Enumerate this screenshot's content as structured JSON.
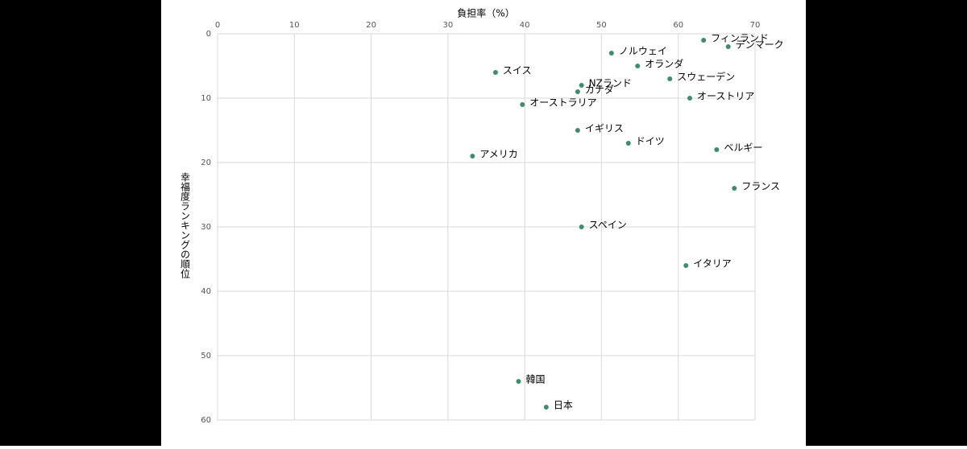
{
  "chart_data": {
    "type": "scatter",
    "x_label": "負担率（%）",
    "y_label": "幸福度ランキングの順位",
    "labels": [
      "フィンランド",
      "デンマーク",
      "ノルウェイ",
      "オランダ",
      "スイス",
      "スウェーデン",
      "NZランド",
      "カナダ",
      "オーストリア",
      "オーストラリア",
      "イギリス",
      "ドイツ",
      "ベルギー",
      "アメリカ",
      "フランス",
      "スペイン",
      "イタリア",
      "韓国",
      "日本"
    ],
    "x": [
      63.3,
      66.5,
      51.3,
      54.7,
      36.2,
      58.9,
      47.4,
      46.9,
      61.5,
      39.7,
      46.9,
      53.5,
      65.0,
      33.2,
      67.3,
      47.4,
      61.0,
      39.2,
      42.8
    ],
    "values": [
      1,
      2,
      3,
      5,
      6,
      7,
      8,
      9,
      10,
      11,
      15,
      17,
      18,
      19,
      24,
      30,
      36,
      54,
      58
    ],
    "color": "#3d8c6c",
    "xlim": [
      0,
      70
    ],
    "xticks": [
      0,
      10,
      20,
      30,
      40,
      50,
      60,
      70
    ],
    "ylim": [
      0,
      60
    ],
    "yticks": [
      0,
      10,
      20,
      30,
      40,
      50,
      60
    ],
    "y_inverted": true,
    "x_axis_position": "top",
    "grid": true
  }
}
